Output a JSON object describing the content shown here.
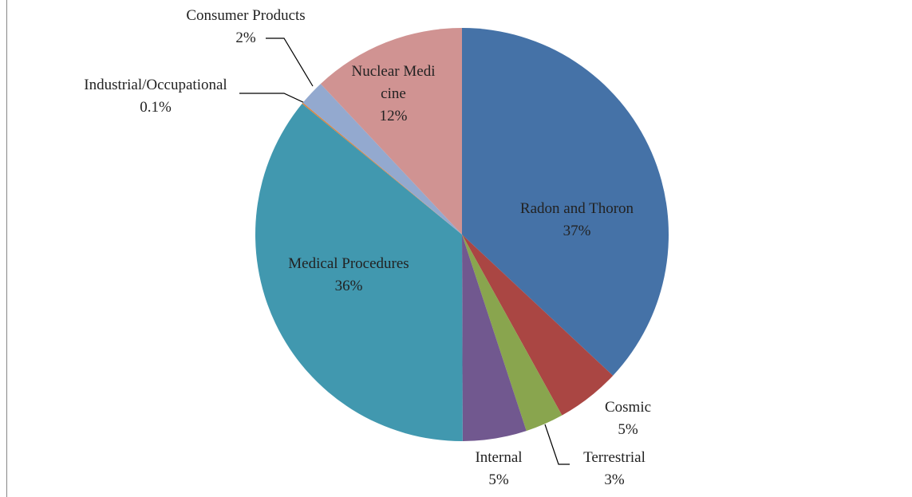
{
  "chart_data": {
    "type": "pie",
    "categories": [
      "Radon and Thoron",
      "Cosmic",
      "Terrestrial",
      "Internal",
      "Medical Procedures",
      "Industrial/Occupational",
      "Consumer Products",
      "Nuclear Medicine"
    ],
    "values": [
      37,
      5,
      3,
      5,
      36,
      0.1,
      2,
      12
    ],
    "value_labels": [
      "37%",
      "5%",
      "3%",
      "5%",
      "36%",
      "0.1%",
      "2%",
      "12%"
    ],
    "colors": [
      "#4572a7",
      "#aa4643",
      "#89a54e",
      "#71588f",
      "#4198af",
      "#db843d",
      "#93a9cf",
      "#d09392"
    ]
  }
}
